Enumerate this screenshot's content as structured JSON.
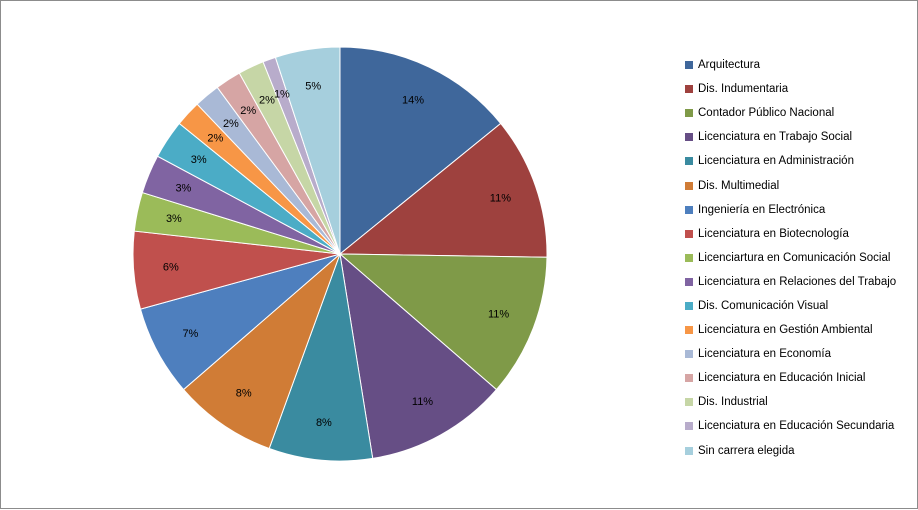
{
  "chart_data": {
    "type": "pie",
    "title": "",
    "legend_position": "right",
    "categories": [
      "Arquitectura",
      "Dis. Indumentaria",
      "Contador Público Nacional",
      "Licenciatura en Trabajo Social",
      "Licenciatura en Administración",
      "Dis. Multimedial",
      "Ingeniería en Electrónica",
      "Licenciatura en Biotecnología",
      "Licenciartura en Comunicación Social",
      "Licenciatura en Relaciones del Trabajo",
      "Dis. Comunicación Visual",
      "Licenciatura en Gestión Ambiental",
      "Licenciatura en Economía",
      "Licenciatura en Educación Inicial",
      "Dis. Industrial",
      "Licenciatura en Educación Secundaria",
      "Sin carrera elegida"
    ],
    "values": [
      14,
      11,
      11,
      11,
      8,
      8,
      7,
      6,
      3,
      3,
      3,
      2,
      2,
      2,
      2,
      1,
      5
    ],
    "data_labels": [
      "14%",
      "11%",
      "11%",
      "11%",
      "8%",
      "8%",
      "7%",
      "6%",
      "3%",
      "3%",
      "3%",
      "2%",
      "2%",
      "2%",
      "2%",
      "1%",
      "5%"
    ],
    "colors": [
      "#3f679b",
      "#9e413e",
      "#7f9a48",
      "#664e85",
      "#3a8ba0",
      "#d07c36",
      "#4e7fbe",
      "#c0504d",
      "#9bbb59",
      "#8064a2",
      "#4bacc6",
      "#f79646",
      "#a9b9d6",
      "#d6a5a4",
      "#c6d6a6",
      "#b8accb",
      "#a6cfdd"
    ]
  }
}
